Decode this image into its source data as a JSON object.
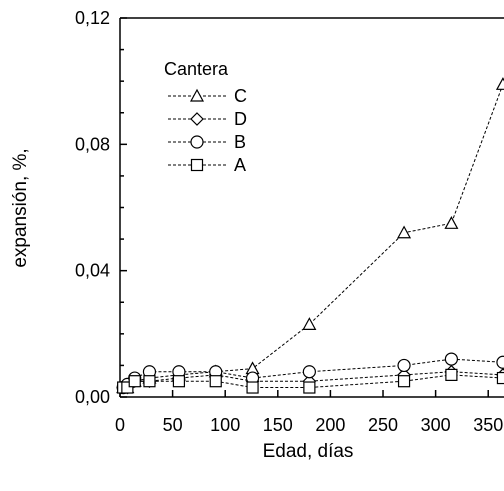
{
  "chart_data": {
    "type": "line",
    "xlabel": "Edad, días",
    "ylabel": "expansión, %,",
    "xlim": [
      0,
      365
    ],
    "ylim": [
      0,
      0.12
    ],
    "x_ticks": [
      "0",
      "50",
      "100",
      "150",
      "200",
      "250",
      "300",
      "350"
    ],
    "y_ticks": [
      "0,00",
      "0,04",
      "0,08",
      "0,12"
    ],
    "legend": {
      "title": "Cantera",
      "position": "upper-left"
    },
    "series": [
      {
        "name": "C",
        "marker": "triangle",
        "x": [
          3,
          7,
          14,
          28,
          56,
          91,
          126,
          180,
          270,
          315,
          364
        ],
        "y": [
          0.003,
          0.003,
          0.005,
          0.006,
          0.007,
          0.008,
          0.009,
          0.023,
          0.052,
          0.055,
          0.099
        ]
      },
      {
        "name": "D",
        "marker": "diamond",
        "x": [
          3,
          7,
          14,
          28,
          56,
          91,
          126,
          180,
          270,
          315,
          364
        ],
        "y": [
          0.003,
          0.003,
          0.005,
          0.005,
          0.006,
          0.007,
          0.005,
          0.005,
          0.007,
          0.008,
          0.007
        ]
      },
      {
        "name": "B",
        "marker": "circle",
        "x": [
          3,
          7,
          14,
          28,
          56,
          91,
          126,
          180,
          270,
          315,
          364
        ],
        "y": [
          0.003,
          0.004,
          0.006,
          0.008,
          0.008,
          0.008,
          0.006,
          0.008,
          0.01,
          0.012,
          0.011
        ]
      },
      {
        "name": "A",
        "marker": "square",
        "x": [
          3,
          7,
          14,
          28,
          56,
          91,
          126,
          180,
          270,
          315,
          364
        ],
        "y": [
          0.003,
          0.003,
          0.005,
          0.005,
          0.005,
          0.005,
          0.003,
          0.003,
          0.005,
          0.007,
          0.006
        ]
      }
    ]
  }
}
